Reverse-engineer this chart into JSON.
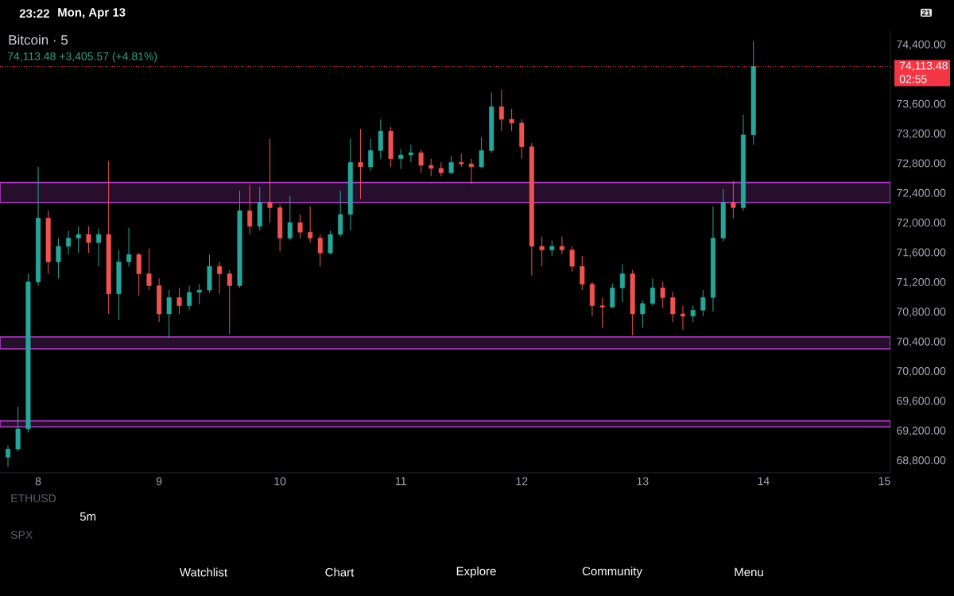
{
  "chart_data": {
    "type": "candlestick",
    "title": "Bitcoin · 5",
    "subtitle": "74,113.48 +3,405.57 (+4.81%)",
    "x": [
      7.75,
      7.833,
      7.917,
      8.0,
      8.083,
      8.167,
      8.25,
      8.333,
      8.417,
      8.5,
      8.583,
      8.667,
      8.75,
      8.833,
      8.917,
      9.0,
      9.083,
      9.167,
      9.25,
      9.333,
      9.417,
      9.5,
      9.583,
      9.667,
      9.75,
      9.833,
      9.917,
      10.0,
      10.083,
      10.167,
      10.25,
      10.333,
      10.417,
      10.5,
      10.583,
      10.667,
      10.75,
      10.833,
      10.917,
      11.0,
      11.083,
      11.167,
      11.25,
      11.333,
      11.417,
      11.5,
      11.583,
      11.667,
      11.75,
      11.833,
      11.917,
      12.0,
      12.083,
      12.167,
      12.25,
      12.333,
      12.417,
      12.5,
      12.583,
      12.667,
      12.75,
      12.833,
      12.917,
      13.0,
      13.083,
      13.167,
      13.25,
      13.333,
      13.417,
      13.5,
      13.583,
      13.667,
      13.75,
      13.833,
      13.917
    ],
    "ohlc": [
      [
        68850,
        69010,
        68720,
        68960
      ],
      [
        68960,
        69530,
        68930,
        69230
      ],
      [
        69230,
        71320,
        69180,
        71210
      ],
      [
        71210,
        72760,
        71160,
        72070
      ],
      [
        72070,
        72170,
        71320,
        71480
      ],
      [
        71480,
        71800,
        71260,
        71690
      ],
      [
        71690,
        71900,
        71580,
        71800
      ],
      [
        71800,
        71960,
        71600,
        71850
      ],
      [
        71850,
        71960,
        71600,
        71740
      ],
      [
        71740,
        71930,
        71420,
        71850
      ],
      [
        71850,
        72840,
        70780,
        71050
      ],
      [
        71050,
        71640,
        70700,
        71480
      ],
      [
        71480,
        71940,
        71420,
        71580
      ],
      [
        71580,
        71600,
        71030,
        71320
      ],
      [
        71320,
        71660,
        71100,
        71160
      ],
      [
        71160,
        71260,
        70670,
        70780
      ],
      [
        70780,
        71100,
        70460,
        71000
      ],
      [
        71000,
        71130,
        70780,
        70890
      ],
      [
        70890,
        71160,
        70830,
        71070
      ],
      [
        71070,
        71180,
        70910,
        71100
      ],
      [
        71100,
        71580,
        71070,
        71420
      ],
      [
        71420,
        71480,
        71050,
        71320
      ],
      [
        71320,
        71370,
        70510,
        71160
      ],
      [
        71160,
        72440,
        71130,
        72170
      ],
      [
        72170,
        72520,
        71850,
        71960
      ],
      [
        71960,
        72490,
        71900,
        72280
      ],
      [
        72280,
        73140,
        72010,
        72210
      ],
      [
        72210,
        72250,
        71620,
        71800
      ],
      [
        71800,
        72370,
        71770,
        72010
      ],
      [
        72010,
        72120,
        71800,
        71880
      ],
      [
        71880,
        72230,
        71740,
        71800
      ],
      [
        71800,
        71850,
        71420,
        71600
      ],
      [
        71600,
        71900,
        71580,
        71850
      ],
      [
        71850,
        72440,
        71820,
        72120
      ],
      [
        72120,
        73140,
        71910,
        72820
      ],
      [
        72820,
        73270,
        72330,
        72760
      ],
      [
        72760,
        73140,
        72710,
        72980
      ],
      [
        72980,
        73400,
        72870,
        73240
      ],
      [
        73240,
        73300,
        72760,
        72870
      ],
      [
        72870,
        73000,
        72730,
        72920
      ],
      [
        72920,
        73060,
        72820,
        72950
      ],
      [
        72950,
        72990,
        72680,
        72780
      ],
      [
        72780,
        72870,
        72630,
        72740
      ],
      [
        72740,
        72820,
        72630,
        72680
      ],
      [
        72680,
        72910,
        72660,
        72820
      ],
      [
        72820,
        72940,
        72760,
        72800
      ],
      [
        72800,
        72870,
        72530,
        72760
      ],
      [
        72760,
        73160,
        72740,
        72980
      ],
      [
        72980,
        73760,
        72950,
        73570
      ],
      [
        73570,
        73800,
        73240,
        73400
      ],
      [
        73400,
        73540,
        73240,
        73350
      ],
      [
        73350,
        73400,
        72870,
        73030
      ],
      [
        73030,
        73080,
        71300,
        71690
      ],
      [
        71690,
        71820,
        71420,
        71640
      ],
      [
        71640,
        71770,
        71560,
        71690
      ],
      [
        71690,
        71820,
        71580,
        71640
      ],
      [
        71640,
        71690,
        71350,
        71420
      ],
      [
        71420,
        71560,
        71100,
        71180
      ],
      [
        71180,
        71210,
        70750,
        70890
      ],
      [
        70890,
        71000,
        70590,
        70870
      ],
      [
        70870,
        71190,
        70860,
        71130
      ],
      [
        71130,
        71450,
        70940,
        71320
      ],
      [
        71320,
        71370,
        70490,
        70780
      ],
      [
        70780,
        70960,
        70590,
        70920
      ],
      [
        70920,
        71260,
        70890,
        71130
      ],
      [
        71130,
        71210,
        70860,
        71000
      ],
      [
        71000,
        71080,
        70670,
        70780
      ],
      [
        70780,
        70890,
        70570,
        70750
      ],
      [
        70750,
        70890,
        70670,
        70830
      ],
      [
        70830,
        71100,
        70750,
        71000
      ],
      [
        71000,
        72230,
        70810,
        71800
      ],
      [
        71800,
        72460,
        71760,
        72280
      ],
      [
        72280,
        72570,
        72070,
        72210
      ],
      [
        72210,
        73460,
        72170,
        73190
      ],
      [
        73190,
        74450,
        73060,
        74113.48
      ]
    ],
    "colors": [
      "#26a69a",
      "#26a69a",
      "#26a69a",
      "#26a69a",
      "#ef5350",
      "#26a69a",
      "#26a69a",
      "#26a69a",
      "#ef5350",
      "#26a69a",
      "#ef5350",
      "#26a69a",
      "#26a69a",
      "#ef5350",
      "#ef5350",
      "#ef5350",
      "#26a69a",
      "#ef5350",
      "#26a69a",
      "#26a69a",
      "#26a69a",
      "#ef5350",
      "#ef5350",
      "#26a69a",
      "#ef5350",
      "#26a69a",
      "#ef5350",
      "#ef5350",
      "#26a69a",
      "#ef5350",
      "#ef5350",
      "#ef5350",
      "#26a69a",
      "#26a69a",
      "#26a69a",
      "#ef5350",
      "#26a69a",
      "#26a69a",
      "#ef5350",
      "#26a69a",
      "#26a69a",
      "#ef5350",
      "#ef5350",
      "#ef5350",
      "#26a69a",
      "#ef5350",
      "#ef5350",
      "#26a69a",
      "#26a69a",
      "#ef5350",
      "#ef5350",
      "#ef5350",
      "#ef5350",
      "#ef5350",
      "#26a69a",
      "#ef5350",
      "#ef5350",
      "#ef5350",
      "#ef5350",
      "#ef5350",
      "#26a69a",
      "#26a69a",
      "#ef5350",
      "#26a69a",
      "#26a69a",
      "#ef5350",
      "#ef5350",
      "#ef5350",
      "#26a69a",
      "#26a69a",
      "#26a69a",
      "#26a69a",
      "#ef5350",
      "#26a69a",
      "#26a69a"
    ],
    "xlim": [
      7.684,
      15.05
    ],
    "ylim": [
      68640,
      74600
    ],
    "xticks": [
      8,
      9,
      10,
      11,
      12,
      13,
      14,
      15
    ],
    "yticks": [
      {
        "value": 68800,
        "label": "68,800.00"
      },
      {
        "value": 69200,
        "label": "69,200.00"
      },
      {
        "value": 69600,
        "label": "69,600.00"
      },
      {
        "value": 70000,
        "label": "70,000.00"
      },
      {
        "value": 70400,
        "label": "70,400.00"
      },
      {
        "value": 70800,
        "label": "70,800.00"
      },
      {
        "value": 71200,
        "label": "71,200.00"
      },
      {
        "value": 71600,
        "label": "71,600.00"
      },
      {
        "value": 72000,
        "label": "72,000.00"
      },
      {
        "value": 72400,
        "label": "72,400.00"
      },
      {
        "value": 72800,
        "label": "72,800.00"
      },
      {
        "value": 73200,
        "label": "73,200.00"
      },
      {
        "value": 73600,
        "label": "73,600.00"
      },
      {
        "value": 74400,
        "label": "74,400.00"
      }
    ],
    "ref_lines": [
      {
        "axis": "y",
        "value": 74113.48,
        "label": "74,113.48",
        "color": "#f23645",
        "line_style": "dotted"
      }
    ],
    "bands": [
      {
        "axis": "y",
        "from": 72280,
        "to": 72550,
        "color": "#270e2c"
      },
      {
        "axis": "y",
        "from": 70310,
        "to": 70470,
        "color": "#270e2c"
      },
      {
        "axis": "y",
        "from": 69260,
        "to": 69340,
        "color": "#270e2c"
      }
    ],
    "annotations": [
      "02:55",
      "23:22",
      "Mon, Apr 13",
      "21",
      "ETHUSD",
      "5m",
      "SPX",
      "Watchlist",
      "Chart",
      "Explore",
      "Community",
      "Menu"
    ]
  }
}
